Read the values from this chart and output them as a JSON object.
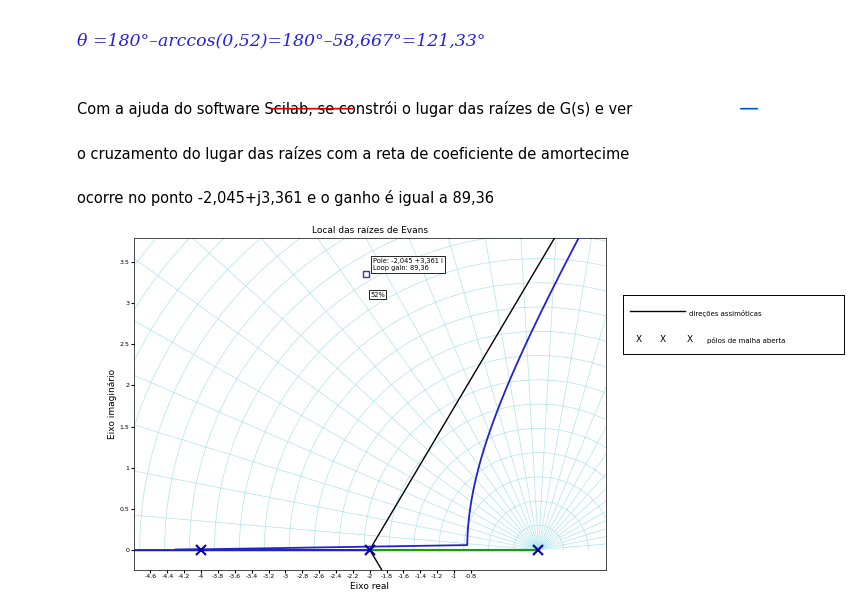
{
  "plot_title": "Local das raízes de Evans",
  "xlabel": "Eixo real",
  "ylabel": "Eixo imaginário",
  "xlim": [
    -4.8,
    0.8
  ],
  "ylim": [
    -0.25,
    3.8
  ],
  "xtick_vals": [
    -4.6,
    -4.4,
    -4.2,
    -4.0,
    -3.8,
    -3.6,
    -3.4,
    -3.2,
    -3.0,
    -2.8,
    -2.6,
    -2.4,
    -2.2,
    -2.0,
    -1.8,
    -1.6,
    -1.4,
    -1.2,
    -1.0,
    -0.8
  ],
  "ytick_vals": [
    0.0,
    0.5,
    1.0,
    1.5,
    2.0,
    2.5,
    3.0,
    3.5
  ],
  "open_loop_poles": [
    -4.0,
    -2.0,
    0.0
  ],
  "marked_point": [
    -2.045,
    3.361
  ],
  "annotation_text": "Pole: -2,045 +3,361 i\nLoop gain: 89,36",
  "percent_label": "52%",
  "legend_line_label": "direções assimóticas",
  "legend_x_label": "pólos de malha aberta",
  "bg_color": "#ffffff",
  "sidebar_color": "#4a6fa5",
  "cyan_color": "#88d8e0",
  "blue_locus_color": "#2222cc",
  "green_color": "#00aa00",
  "black_color": "#000000",
  "formula_color": "#2222dd",
  "formula_text": "θ =180°–arccos(0,52)=180°–58,667°=121,33°",
  "body_line1": "Com a ajuda do software Scilab, se constrói o lugar das raízes de G(s) e ver",
  "body_line2": "o cruzamento do lugar das raízes com a reta de coeficiente de amortecime",
  "body_line3": "ocorre no ponto -2,045+j3,361 e o ganho é igual a 89,36",
  "scilab_underline_start": 0.262,
  "scilab_underline_end": 0.373,
  "gs_underline_start": 0.857,
  "gs_underline_end": 0.885,
  "centroid": -2.0,
  "asymptote_angles_deg": [
    60.0,
    180.0,
    300.0
  ],
  "arc_color": "#99dde6",
  "arc_radii_count": 22,
  "arc_radii_max": 6.5,
  "radial_lines_count": 28
}
